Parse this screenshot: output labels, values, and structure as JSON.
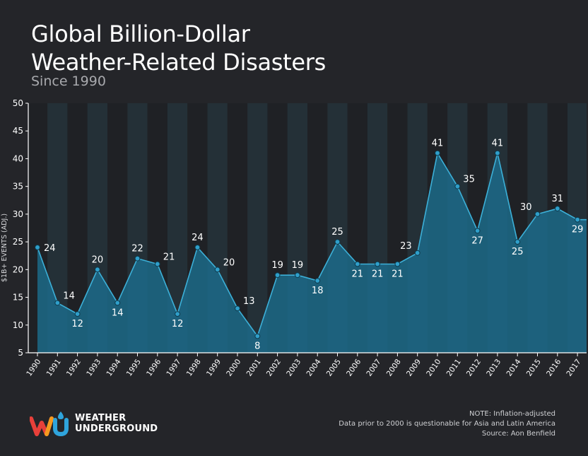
{
  "header": {
    "title_line1": "Global Billion-Dollar",
    "title_line2": "Weather-Related Disasters",
    "subtitle": "Since 1990"
  },
  "brand": {
    "line1": "WEATHER",
    "line2": "UNDERGROUND"
  },
  "notes": {
    "line1": "NOTE: Inflation-adjusted",
    "line2": "Data prior to 2000 is questionable for Asia and Latin America",
    "line3": "Source: Aon Benfield"
  },
  "colors": {
    "background": "#242529",
    "band_dark": "#1f2125",
    "band_light": "#243037",
    "area_fill": "#1c6c8c",
    "line": "#3cb0d8",
    "marker": "#2f9fca",
    "brand_red": "#e8403a",
    "brand_orange": "#f59a1f",
    "brand_blue": "#2fa4dc"
  },
  "chart_data": {
    "type": "area",
    "title": "Global Billion-Dollar Weather-Related Disasters",
    "subtitle": "Since 1990",
    "xlabel": "",
    "ylabel": "$1B+ EVENTS (ADJ.)",
    "ylim": [
      5,
      50
    ],
    "yticks": [
      5,
      10,
      15,
      20,
      25,
      30,
      35,
      40,
      45,
      50
    ],
    "categories": [
      "1990",
      "1991",
      "1992",
      "1993",
      "1994",
      "1995",
      "1996",
      "1997",
      "1998",
      "1999",
      "2000",
      "2001",
      "2002",
      "2003",
      "2004",
      "2005",
      "2006",
      "2007",
      "2008",
      "2009",
      "2010",
      "2011",
      "2012",
      "2013",
      "2014",
      "2015",
      "2016",
      "2017"
    ],
    "series": [
      {
        "name": "$1B+ events",
        "values": [
          24,
          14,
          12,
          20,
          14,
          22,
          21,
          12,
          24,
          20,
          13,
          8,
          19,
          19,
          18,
          25,
          21,
          21,
          21,
          23,
          41,
          35,
          27,
          41,
          25,
          30,
          31,
          29
        ],
        "labels": [
          "24",
          "14",
          "12",
          "20",
          "14",
          "22",
          "21",
          "12",
          "24",
          "20",
          "13",
          "8",
          "19",
          "19",
          "18",
          "25",
          "21",
          "21",
          "21",
          "23",
          "41",
          "35",
          "27",
          "41",
          "25",
          "30",
          "31",
          "29"
        ]
      }
    ],
    "grid": false,
    "legend": "none"
  }
}
